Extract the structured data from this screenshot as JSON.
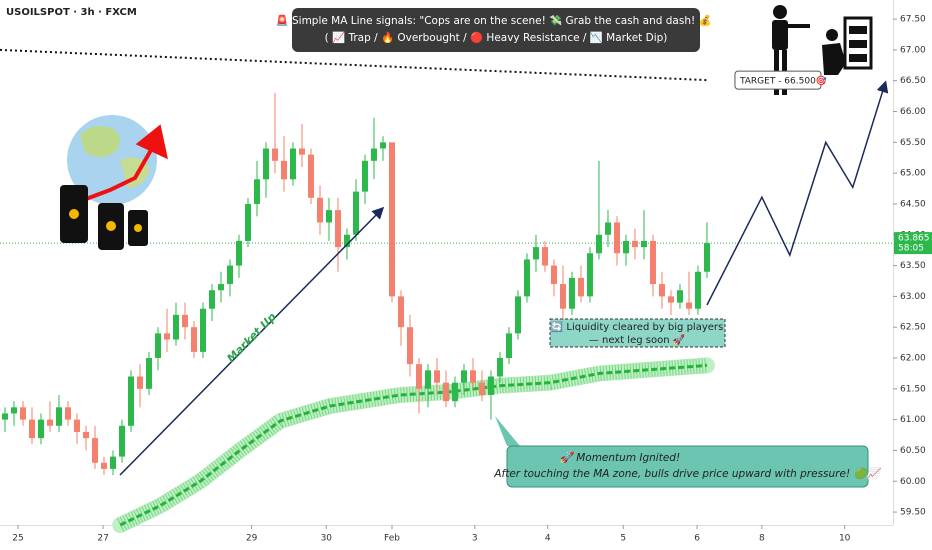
{
  "chart_data": {
    "type": "candlestick",
    "title": "USOILSPOT · 3h · FXCM",
    "up_color": "#2db84c",
    "down_color": "#f4806e",
    "xlim": [
      -0.556,
      98.67
    ],
    "ylim": [
      59.29,
      67.81
    ],
    "xticks": [
      {
        "value": 1.44,
        "label": "25"
      },
      {
        "value": 10.9,
        "label": "27"
      },
      {
        "value": 27.4,
        "label": "29"
      },
      {
        "value": 35.7,
        "label": "30"
      },
      {
        "value": 43,
        "label": "Feb"
      },
      {
        "value": 52.2,
        "label": "3"
      },
      {
        "value": 60.3,
        "label": "4"
      },
      {
        "value": 68.7,
        "label": "5"
      },
      {
        "value": 76.9,
        "label": "6"
      },
      {
        "value": 84.1,
        "label": "8"
      },
      {
        "value": 93.3,
        "label": "10"
      }
    ],
    "yticks": [
      {
        "value": 59.5,
        "label": "59.50"
      },
      {
        "value": 60,
        "label": "60.00"
      },
      {
        "value": 60.5,
        "label": "60.50"
      },
      {
        "value": 61,
        "label": "61.00"
      },
      {
        "value": 61.5,
        "label": "61.50"
      },
      {
        "value": 62,
        "label": "62.00"
      },
      {
        "value": 62.5,
        "label": "62.50"
      },
      {
        "value": 63,
        "label": "63.00"
      },
      {
        "value": 63.5,
        "label": "63.50"
      },
      {
        "value": 64,
        "label": "64.00"
      },
      {
        "value": 64.5,
        "label": "64.50"
      },
      {
        "value": 65,
        "label": "65.00"
      },
      {
        "value": 65.5,
        "label": "65.50"
      },
      {
        "value": 66,
        "label": "66.00"
      },
      {
        "value": 66.5,
        "label": "66.50"
      },
      {
        "value": 67,
        "label": "67.00"
      },
      {
        "value": 67.5,
        "label": "67.50"
      }
    ],
    "candles": [
      [
        61.0,
        61.2,
        60.8,
        61.1
      ],
      [
        61.1,
        61.3,
        60.9,
        61.2
      ],
      [
        61.2,
        61.3,
        60.9,
        61.0
      ],
      [
        61.0,
        61.2,
        60.6,
        60.7
      ],
      [
        60.7,
        61.1,
        60.6,
        61.0
      ],
      [
        61.0,
        61.3,
        60.8,
        60.9
      ],
      [
        60.9,
        61.4,
        60.8,
        61.2
      ],
      [
        61.2,
        61.3,
        60.9,
        61.0
      ],
      [
        61.0,
        61.1,
        60.6,
        60.8
      ],
      [
        60.8,
        60.9,
        60.5,
        60.7
      ],
      [
        60.7,
        60.9,
        60.2,
        60.3
      ],
      [
        60.3,
        60.4,
        60.1,
        60.2
      ],
      [
        60.2,
        60.5,
        60.1,
        60.4
      ],
      [
        60.4,
        61.0,
        60.3,
        60.9
      ],
      [
        60.9,
        61.8,
        60.8,
        61.7
      ],
      [
        61.7,
        61.9,
        61.2,
        61.5
      ],
      [
        61.5,
        62.1,
        61.4,
        62.0
      ],
      [
        62.0,
        62.5,
        61.8,
        62.4
      ],
      [
        62.4,
        62.8,
        62.1,
        62.3
      ],
      [
        62.3,
        62.9,
        62.2,
        62.7
      ],
      [
        62.7,
        62.9,
        62.3,
        62.5
      ],
      [
        62.5,
        62.6,
        62.0,
        62.1
      ],
      [
        62.1,
        62.9,
        62.0,
        62.8
      ],
      [
        62.8,
        63.2,
        62.6,
        63.1
      ],
      [
        63.1,
        63.4,
        62.9,
        63.2
      ],
      [
        63.2,
        63.6,
        63.0,
        63.5
      ],
      [
        63.5,
        64.0,
        63.3,
        63.9
      ],
      [
        63.9,
        64.6,
        63.8,
        64.5
      ],
      [
        64.5,
        65.2,
        64.3,
        64.9
      ],
      [
        64.9,
        65.5,
        64.6,
        65.4
      ],
      [
        65.4,
        66.3,
        65.0,
        65.2
      ],
      [
        65.2,
        65.6,
        64.7,
        64.9
      ],
      [
        64.9,
        65.5,
        64.8,
        65.4
      ],
      [
        65.4,
        65.8,
        65.1,
        65.3
      ],
      [
        65.3,
        65.4,
        64.5,
        64.6
      ],
      [
        64.6,
        64.8,
        64.0,
        64.2
      ],
      [
        64.2,
        64.6,
        63.9,
        64.4
      ],
      [
        64.4,
        64.6,
        63.4,
        63.8
      ],
      [
        63.8,
        64.1,
        63.6,
        64.0
      ],
      [
        64.0,
        64.9,
        63.9,
        64.7
      ],
      [
        64.7,
        65.3,
        64.5,
        65.2
      ],
      [
        65.2,
        65.9,
        64.9,
        65.4
      ],
      [
        65.4,
        65.6,
        65.2,
        65.5
      ],
      [
        65.5,
        65.5,
        62.9,
        63.0
      ],
      [
        63.0,
        63.1,
        62.2,
        62.5
      ],
      [
        62.5,
        62.7,
        61.7,
        61.9
      ],
      [
        61.9,
        62.0,
        61.1,
        61.5
      ],
      [
        61.5,
        61.9,
        61.2,
        61.8
      ],
      [
        61.8,
        62.0,
        61.4,
        61.6
      ],
      [
        61.6,
        61.8,
        61.2,
        61.3
      ],
      [
        61.3,
        61.7,
        61.2,
        61.6
      ],
      [
        61.6,
        61.9,
        61.4,
        61.8
      ],
      [
        61.8,
        62.0,
        61.5,
        61.6
      ],
      [
        61.6,
        61.8,
        61.3,
        61.4
      ],
      [
        61.4,
        61.8,
        61.0,
        61.7
      ],
      [
        61.7,
        62.1,
        61.6,
        62.0
      ],
      [
        62.0,
        62.5,
        61.9,
        62.4
      ],
      [
        62.4,
        63.1,
        62.3,
        63.0
      ],
      [
        63.0,
        63.7,
        62.9,
        63.6
      ],
      [
        63.6,
        64.0,
        63.4,
        63.8
      ],
      [
        63.8,
        63.9,
        63.4,
        63.5
      ],
      [
        63.5,
        63.6,
        63.0,
        63.2
      ],
      [
        63.2,
        63.5,
        62.6,
        62.8
      ],
      [
        62.8,
        63.4,
        62.7,
        63.3
      ],
      [
        63.3,
        63.5,
        62.9,
        63.0
      ],
      [
        63.0,
        63.8,
        62.9,
        63.7
      ],
      [
        63.7,
        65.2,
        63.6,
        64.0
      ],
      [
        64.0,
        64.4,
        63.8,
        64.2
      ],
      [
        64.2,
        64.3,
        63.5,
        63.7
      ],
      [
        63.7,
        64.0,
        63.5,
        63.9
      ],
      [
        63.9,
        64.1,
        63.6,
        63.8
      ],
      [
        63.8,
        64.4,
        63.6,
        63.9
      ],
      [
        63.9,
        64.0,
        63.0,
        63.2
      ],
      [
        63.2,
        63.4,
        62.8,
        63.0
      ],
      [
        63.0,
        63.1,
        62.7,
        62.9
      ],
      [
        62.9,
        63.2,
        62.8,
        63.1
      ],
      [
        62.9,
        63.4,
        62.7,
        62.8
      ],
      [
        62.8,
        63.5,
        62.7,
        63.4
      ],
      [
        63.4,
        64.2,
        63.3,
        63.865
      ]
    ],
    "series": [
      {
        "name": "MA",
        "color": "#22b43a",
        "x": [
          12.8,
          17.2,
          21.7,
          26.1,
          30.6,
          36.1,
          43.9,
          49.4,
          55,
          60.6,
          66.1,
          78
        ],
        "values": [
          59.29,
          59.6,
          60.0,
          60.5,
          60.98,
          61.22,
          61.4,
          61.45,
          61.55,
          61.6,
          61.75,
          61.88
        ]
      },
      {
        "name": "Projection",
        "color": "#1a2a5a",
        "x": [
          78,
          84.1,
          87.2,
          91.2,
          94.2,
          97.8
        ],
        "values": [
          62.86,
          64.61,
          63.67,
          65.5,
          64.77,
          66.46
        ]
      },
      {
        "name": "Target line",
        "color": "#111111",
        "x": [
          -0.556,
          78
        ],
        "values": [
          67.0,
          66.51
        ]
      }
    ],
    "last_price": 63.865,
    "countdown": "58:05",
    "target_label": "TARGET - 66.500🎯",
    "market_up_label": "Market Up",
    "signal_box": [
      "🚨 Simple MA Line signals: \"Cops are on the scene! 💸 Grab the cash and dash! 💰\"",
      "( 📈 Trap / 🔥 Overbought / 🔴 Heavy Resistance / 📉 Market Dip)"
    ],
    "liquidity_box": [
      "🔄 Liquidity cleared by big players",
      "— next leg soon 🚀"
    ],
    "momentum_box": [
      "🚀 Momentum Ignited!",
      "After touching the MA zone, bulls drive price upward with pressure! 🟢📈"
    ]
  }
}
